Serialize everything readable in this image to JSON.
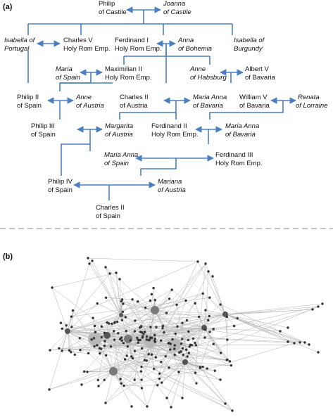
{
  "panel_a_label": "(a)",
  "panel_b_label": "(b)",
  "colors": {
    "arrow": "#4a7fc1",
    "divider": "#888888",
    "node": "#333333",
    "hub": "#a6a6a6",
    "edge": "#b3b3b3"
  },
  "people": {
    "philip_castile": {
      "l1": "Philip",
      "l2": "of Castile"
    },
    "joanna": {
      "l1": "Joanna",
      "l2": "of Castile"
    },
    "isabella_portugal": {
      "l1": "Isabella of",
      "l2": "Portugal"
    },
    "charles_v": {
      "l1": "Charles V",
      "l2": "Holy Rom Emp."
    },
    "ferdinand_i": {
      "l1": "Ferdinand I",
      "l2": "Holy Rom Emp."
    },
    "anna_bohemia": {
      "l1": "Anna",
      "l2": "of Bohemia"
    },
    "isabella_burgundy": {
      "l1": "Isabella of",
      "l2": "Burgundy"
    },
    "maria_spain": {
      "l1": "Maria",
      "l2": "of Spain"
    },
    "maximilian_ii": {
      "l1": "Maximilian II",
      "l2": "Holy Rom Emp."
    },
    "anne_habsburg": {
      "l1": "Anne",
      "l2": "of Habsburg"
    },
    "albert_v": {
      "l1": "Albert V",
      "l2": "of Bavaria"
    },
    "philip_ii": {
      "l1": "Philip II",
      "l2": "of Spain"
    },
    "anne_austria": {
      "l1": "Anne",
      "l2": "of Austria"
    },
    "charles_ii_austria": {
      "l1": "Charles II",
      "l2": "of Austria"
    },
    "maria_anna_bav1": {
      "l1": "Maria Anna",
      "l2": "of Bavaria"
    },
    "william_v": {
      "l1": "William V",
      "l2": "of Bavaria"
    },
    "renata": {
      "l1": "Renata",
      "l2": "of Lorraine"
    },
    "philip_iii": {
      "l1": "Philip III",
      "l2": "of Spain"
    },
    "margarita": {
      "l1": "Margarita",
      "l2": "of Austria"
    },
    "ferdinand_ii": {
      "l1": "Ferdinand II",
      "l2": "Holy Rom Emp."
    },
    "maria_anna_bav2": {
      "l1": "Maria Anna",
      "l2": "of Bavaria"
    },
    "maria_anna_spain": {
      "l1": "Maria Anna",
      "l2": "of Spain"
    },
    "ferdinand_iii": {
      "l1": "Ferdinand III",
      "l2": "Holy Rom Emp."
    },
    "philip_iv": {
      "l1": "Philip IV",
      "l2": "of Spain"
    },
    "mariana": {
      "l1": "Mariana",
      "l2": "of Austria"
    },
    "charles_ii_spain": {
      "l1": "Charles II",
      "l2": "of Spain"
    }
  }
}
